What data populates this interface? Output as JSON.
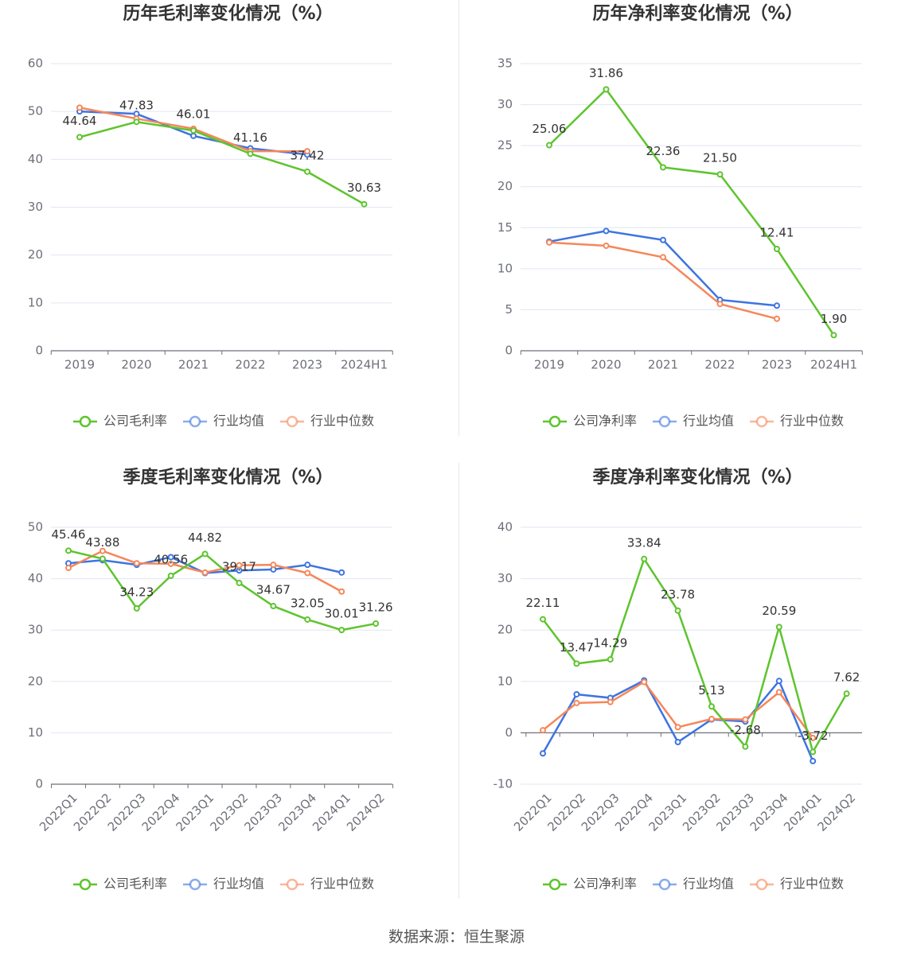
{
  "colors": {
    "company": "#5ec42e",
    "average": "#3e74e0",
    "median": "#f5875a"
  },
  "legend": {
    "avg_label": "行业均值",
    "median_label": "行业中位数"
  },
  "source": "数据来源：恒生聚源",
  "chart_data": [
    {
      "type": "line",
      "title": "历年毛利率变化情况（%）",
      "categories": [
        "2019",
        "2020",
        "2021",
        "2022",
        "2023",
        "2024H1"
      ],
      "ylim": [
        0,
        60
      ],
      "yticks": [
        0,
        10,
        20,
        30,
        40,
        50,
        60
      ],
      "x_label_rotate": false,
      "legend_position": "bottom",
      "grid": true,
      "series": [
        {
          "name": "公司毛利率",
          "key": "company",
          "values": [
            44.64,
            47.83,
            46.01,
            41.16,
            37.42,
            30.63
          ],
          "labels": [
            "44.64",
            "47.83",
            "46.01",
            "41.16",
            "37.42",
            "30.63"
          ]
        },
        {
          "name": "行业均值",
          "key": "average",
          "values": [
            50.0,
            49.5,
            44.9,
            42.3,
            41.0,
            null
          ]
        },
        {
          "name": "行业中位数",
          "key": "median",
          "values": [
            50.8,
            48.5,
            46.4,
            41.7,
            41.7,
            null
          ]
        }
      ]
    },
    {
      "type": "line",
      "title": "历年净利率变化情况（%）",
      "categories": [
        "2019",
        "2020",
        "2021",
        "2022",
        "2023",
        "2024H1"
      ],
      "ylim": [
        0,
        35
      ],
      "yticks": [
        0,
        5,
        10,
        15,
        20,
        25,
        30,
        35
      ],
      "x_label_rotate": false,
      "legend_position": "bottom",
      "grid": true,
      "series": [
        {
          "name": "公司净利率",
          "key": "company",
          "values": [
            25.06,
            31.86,
            22.36,
            21.5,
            12.41,
            1.9
          ],
          "labels": [
            "25.06",
            "31.86",
            "22.36",
            "21.50",
            "12.41",
            "1.90"
          ]
        },
        {
          "name": "行业均值",
          "key": "average",
          "values": [
            13.3,
            14.6,
            13.5,
            6.2,
            5.5,
            null
          ]
        },
        {
          "name": "行业中位数",
          "key": "median",
          "values": [
            13.2,
            12.8,
            11.4,
            5.7,
            3.9,
            null
          ]
        }
      ]
    },
    {
      "type": "line",
      "title": "季度毛利率变化情况（%）",
      "categories": [
        "2022Q1",
        "2022Q2",
        "2022Q3",
        "2022Q4",
        "2023Q1",
        "2023Q2",
        "2023Q3",
        "2023Q4",
        "2024Q1",
        "2024Q2"
      ],
      "ylim": [
        0,
        50
      ],
      "yticks": [
        0,
        10,
        20,
        30,
        40,
        50
      ],
      "x_label_rotate": true,
      "legend_position": "bottom",
      "grid": true,
      "series": [
        {
          "name": "公司毛利率",
          "key": "company",
          "values": [
            45.46,
            43.88,
            34.23,
            40.56,
            44.82,
            39.17,
            34.67,
            32.05,
            30.01,
            31.26
          ],
          "labels": [
            "45.46",
            "43.88",
            "34.23",
            "40.56",
            "44.82",
            "39.17",
            "34.67",
            "32.05",
            "30.01",
            "31.26"
          ]
        },
        {
          "name": "行业均值",
          "key": "average",
          "values": [
            43.0,
            43.6,
            42.7,
            44.2,
            41.1,
            41.6,
            41.8,
            42.7,
            41.2,
            null
          ]
        },
        {
          "name": "行业中位数",
          "key": "median",
          "values": [
            42.1,
            45.4,
            43.0,
            42.9,
            41.2,
            42.6,
            42.7,
            41.1,
            37.5,
            null
          ]
        }
      ]
    },
    {
      "type": "line",
      "title": "季度净利率变化情况（%）",
      "categories": [
        "2022Q1",
        "2022Q2",
        "2022Q3",
        "2022Q4",
        "2023Q1",
        "2023Q2",
        "2023Q3",
        "2023Q4",
        "2024Q1",
        "2024Q2"
      ],
      "ylim": [
        -10,
        40
      ],
      "yticks": [
        -10,
        0,
        10,
        20,
        30,
        40
      ],
      "x_label_rotate": true,
      "legend_position": "bottom",
      "grid": true,
      "series": [
        {
          "name": "公司净利率",
          "key": "company",
          "values": [
            22.11,
            13.47,
            14.29,
            33.84,
            23.78,
            5.13,
            -2.68,
            20.59,
            -3.72,
            7.62
          ],
          "labels": [
            "22.11",
            "13.47",
            "14.29",
            "33.84",
            "23.78",
            "5.13",
            "-2.68",
            "20.59",
            "-3.72",
            "7.62"
          ]
        },
        {
          "name": "行业均值",
          "key": "average",
          "values": [
            -4.0,
            7.5,
            6.8,
            10.2,
            -1.8,
            2.6,
            2.2,
            10.1,
            -5.5,
            null
          ]
        },
        {
          "name": "行业中位数",
          "key": "median",
          "values": [
            0.5,
            5.8,
            6.0,
            9.9,
            1.1,
            2.7,
            2.6,
            7.9,
            -1.0,
            null
          ]
        }
      ]
    }
  ]
}
